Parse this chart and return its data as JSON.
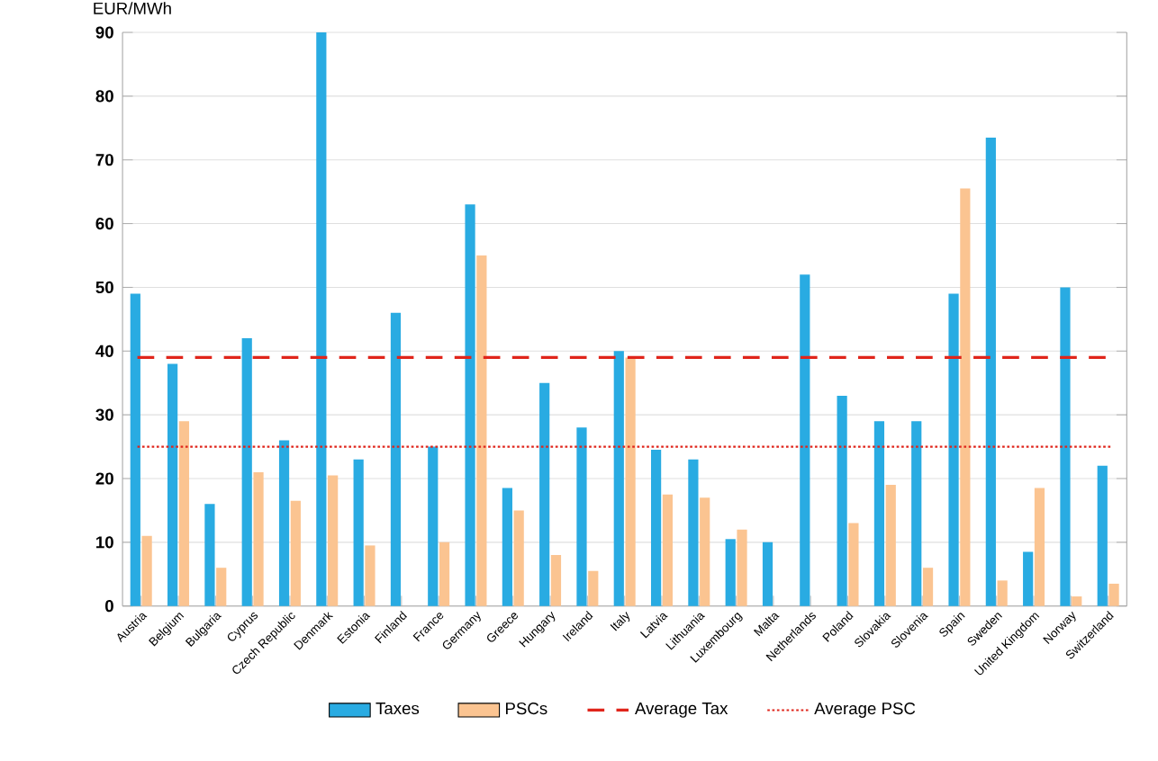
{
  "chart_data": {
    "type": "bar",
    "ylabel": "EUR/MWh",
    "categories": [
      "Austria",
      "Belgium",
      "Bulgaria",
      "Cyprus",
      "Czech Republic",
      "Denmark",
      "Estonia",
      "Finland",
      "France",
      "Germany",
      "Greece",
      "Hungary",
      "Ireland",
      "Italy",
      "Latvia",
      "Lithuania",
      "Luxembourg",
      "Malta",
      "Netherlands",
      "Poland",
      "Slovakia",
      "Slovenia",
      "Spain",
      "Sweden",
      "United Kingdom",
      "Norway",
      "Switzerland"
    ],
    "series": [
      {
        "name": "Taxes",
        "color": "#29abe2",
        "values": [
          49,
          38,
          16,
          42,
          26,
          90,
          23,
          46,
          25,
          63,
          18.5,
          35,
          28,
          40,
          24.5,
          23,
          10.5,
          10,
          52,
          33,
          29,
          29,
          49,
          73.5,
          8.5,
          50,
          22
        ]
      },
      {
        "name": "PSCs",
        "color": "#fbc491",
        "values": [
          11,
          29,
          6,
          21,
          16.5,
          20.5,
          9.5,
          0,
          10,
          55,
          15,
          8,
          5.5,
          39,
          17.5,
          17,
          12,
          0,
          0,
          13,
          19,
          6,
          65.5,
          4,
          18.5,
          1.5,
          3.5
        ]
      }
    ],
    "ref_lines": [
      {
        "axis": "y",
        "value": 39,
        "label": "Average Tax",
        "color": "#e0251b",
        "line_style": "dashed"
      },
      {
        "axis": "y",
        "value": 25,
        "label": "Average PSC",
        "color": "#e0251b",
        "line_style": "dotted"
      }
    ],
    "ylim": [
      0,
      90
    ],
    "yticks": [
      0,
      10,
      20,
      30,
      40,
      50,
      60,
      70,
      80,
      90
    ],
    "grid": "y",
    "legend": "bottom"
  }
}
